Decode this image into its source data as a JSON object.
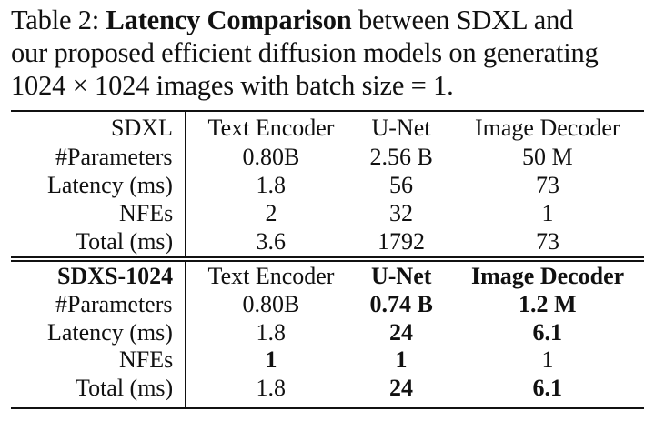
{
  "caption": {
    "label": "Table 2:",
    "title": "Latency Comparison",
    "lines": [
      "between SDXL and",
      "our proposed efficient diffusion models on generating",
      "1024 × 1024 images with batch size = 1."
    ]
  },
  "tables": [
    {
      "header": [
        "SDXL",
        "Text Encoder",
        "U-Net",
        "Image Decoder"
      ],
      "rows": [
        [
          "#Parameters",
          "0.80B",
          "2.56 B",
          "50 M"
        ],
        [
          "Latency (ms)",
          "1.8",
          "56",
          "73"
        ],
        [
          "NFEs",
          "2",
          "32",
          "1"
        ],
        [
          "Total (ms)",
          "3.6",
          "1792",
          "73"
        ]
      ]
    },
    {
      "header": [
        "SDXS-1024",
        "Text Encoder",
        "U-Net",
        "Image Decoder"
      ],
      "rows": [
        [
          "#Parameters",
          "0.80B",
          "0.74 B",
          "1.2 M"
        ],
        [
          "Latency (ms)",
          "1.8",
          "24",
          "6.1"
        ],
        [
          "NFEs",
          "1",
          "1",
          "1"
        ],
        [
          "Total (ms)",
          "1.8",
          "24",
          "6.1"
        ]
      ]
    }
  ]
}
